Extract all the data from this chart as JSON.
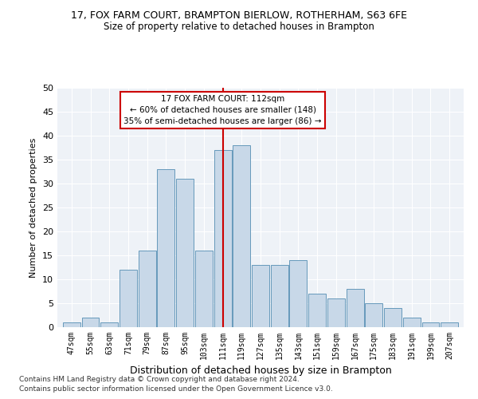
{
  "title1": "17, FOX FARM COURT, BRAMPTON BIERLOW, ROTHERHAM, S63 6FE",
  "title2": "Size of property relative to detached houses in Brampton",
  "xlabel": "Distribution of detached houses by size in Brampton",
  "ylabel": "Number of detached properties",
  "bins": [
    47,
    55,
    63,
    71,
    79,
    87,
    95,
    103,
    111,
    119,
    127,
    135,
    143,
    151,
    159,
    167,
    175,
    183,
    191,
    199,
    207
  ],
  "counts": [
    1,
    2,
    1,
    12,
    16,
    33,
    31,
    16,
    37,
    38,
    13,
    13,
    14,
    7,
    6,
    8,
    5,
    4,
    2,
    1,
    1
  ],
  "bar_color": "#c8d8e8",
  "bar_edge_color": "#6699bb",
  "vline_x": 111,
  "vline_color": "#cc0000",
  "annotation_title": "17 FOX FARM COURT: 112sqm",
  "annotation_line1": "← 60% of detached houses are smaller (148)",
  "annotation_line2": "35% of semi-detached houses are larger (86) →",
  "annotation_box_color": "#cc0000",
  "ylim": [
    0,
    50
  ],
  "yticks": [
    0,
    5,
    10,
    15,
    20,
    25,
    30,
    35,
    40,
    45,
    50
  ],
  "footnote1": "Contains HM Land Registry data © Crown copyright and database right 2024.",
  "footnote2": "Contains public sector information licensed under the Open Government Licence v3.0.",
  "bg_color": "#eef2f7"
}
